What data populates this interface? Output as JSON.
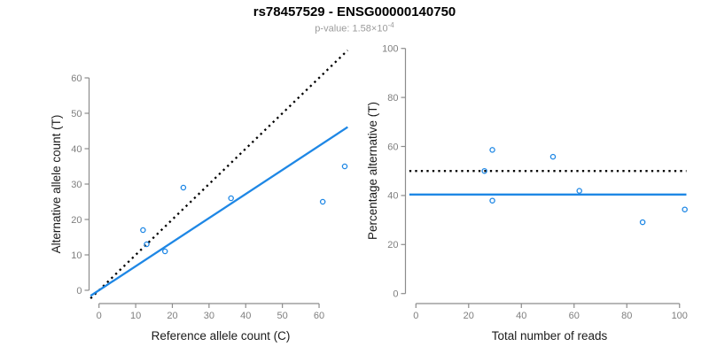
{
  "header": {
    "title": "rs78457529 - ENSG00000140750",
    "p_value_text": "p-value: 1.58×10",
    "p_value_exp": "-4"
  },
  "chart_data": [
    {
      "type": "scatter",
      "xlabel": "Reference allele count (C)",
      "ylabel": "Alternative allele count (T)",
      "xticks": [
        0,
        10,
        20,
        30,
        40,
        50,
        60
      ],
      "yticks": [
        0,
        10,
        20,
        30,
        40,
        50,
        60
      ],
      "xlim": [
        0,
        67
      ],
      "ylim": [
        0,
        67
      ],
      "grid": false,
      "point_color": "#1E87E5",
      "points": [
        [
          12,
          17
        ],
        [
          13,
          13
        ],
        [
          18,
          11
        ],
        [
          23,
          29
        ],
        [
          36,
          26
        ],
        [
          61,
          25
        ],
        [
          67,
          35
        ]
      ],
      "lines": [
        {
          "name": "identity-line",
          "kind": "abline",
          "intercept": 0,
          "slope": 1,
          "style": "dotted",
          "color": "#000000"
        },
        {
          "name": "fit-line",
          "kind": "abline",
          "intercept": 0,
          "slope": 0.68,
          "style": "solid",
          "color": "#1E87E5"
        }
      ]
    },
    {
      "type": "scatter",
      "xlabel": "Total number of reads",
      "ylabel": "Percentage alternative (T)",
      "xticks": [
        0,
        20,
        40,
        60,
        80,
        100
      ],
      "yticks": [
        0,
        20,
        40,
        60,
        80,
        100
      ],
      "xlim": [
        0,
        102
      ],
      "ylim": [
        0,
        100
      ],
      "grid": false,
      "point_color": "#1E87E5",
      "points": [
        [
          29,
          58.6
        ],
        [
          26,
          50
        ],
        [
          29,
          37.9
        ],
        [
          52,
          55.8
        ],
        [
          62,
          41.9
        ],
        [
          86,
          29.1
        ],
        [
          102,
          34.3
        ]
      ],
      "lines": [
        {
          "name": "null-line",
          "kind": "hline",
          "y": 50,
          "style": "dotted",
          "color": "#000000"
        },
        {
          "name": "mean-line",
          "kind": "hline",
          "y": 40.4,
          "style": "solid",
          "color": "#1E87E5"
        }
      ]
    }
  ]
}
